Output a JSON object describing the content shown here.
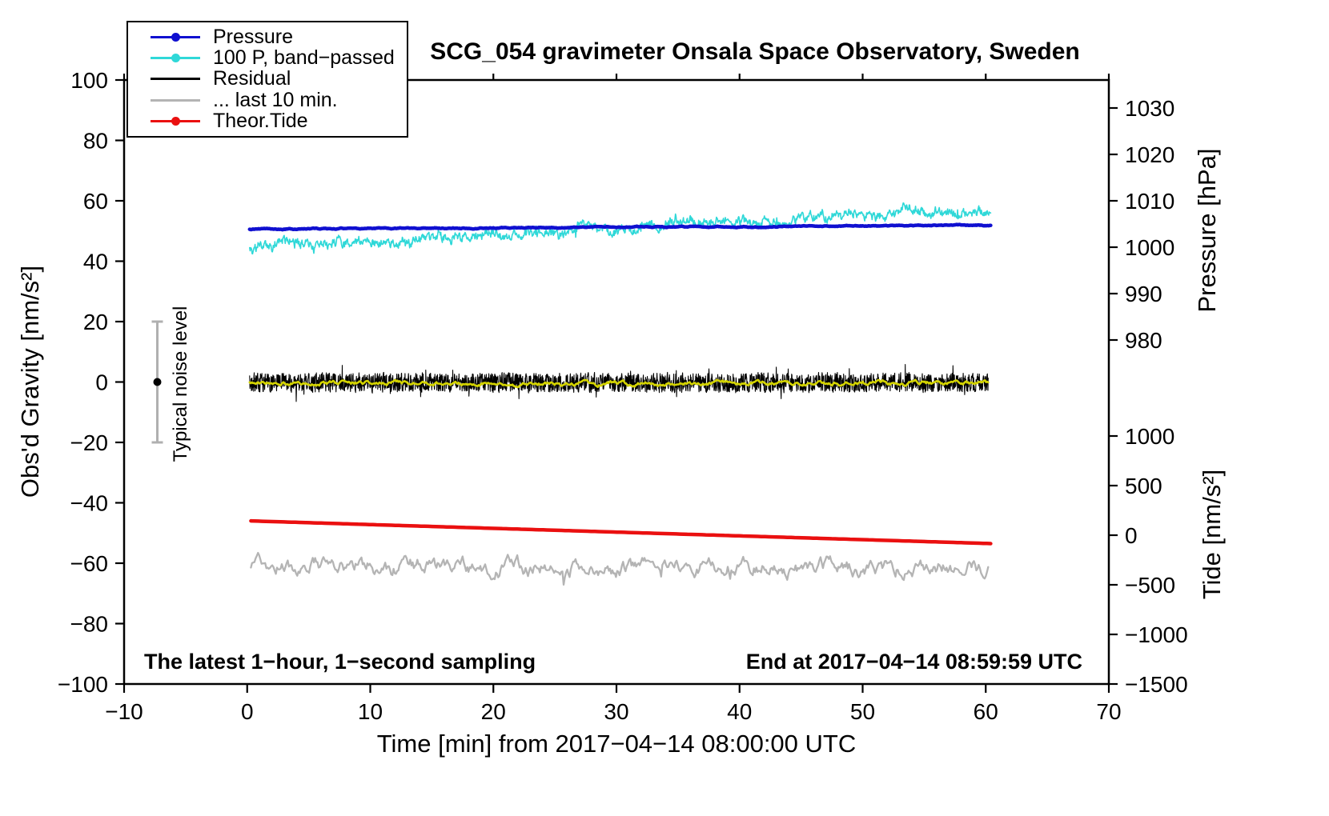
{
  "chart_data": {
    "type": "line",
    "title": "SCG_054 gravimeter Onsala Space Observatory, Sweden",
    "x": {
      "label": "Time [min] from 2017−04−14 08:00:00 UTC",
      "min": -10,
      "max": 70,
      "ticks": [
        -10,
        0,
        10,
        20,
        30,
        40,
        50,
        60,
        70
      ],
      "tick_labels": [
        "−10",
        "0",
        "10",
        "20",
        "30",
        "40",
        "50",
        "60",
        "70"
      ]
    },
    "y_left": {
      "label": "Obs'd Gravity [nm/s²]",
      "min": -100,
      "max": 100,
      "ticks": [
        100,
        80,
        60,
        40,
        20,
        0,
        -20,
        -40,
        -60,
        -80,
        -100
      ],
      "tick_labels": [
        "100",
        "80",
        "60",
        "40",
        "20",
        "0",
        "−20",
        "−40",
        "−60",
        "−80",
        "−100"
      ]
    },
    "y_pressure": {
      "label": "Pressure [hPa]",
      "ticks": [
        1030,
        1020,
        1010,
        1000,
        990,
        980
      ],
      "tick_labels": [
        "1030",
        "1020",
        "1010",
        "1000",
        "990",
        "980"
      ]
    },
    "y_tide": {
      "label": "Tide [nm/s²]",
      "ticks": [
        1000,
        500,
        0,
        -500,
        -1000,
        -1500
      ],
      "tick_labels": [
        "1000",
        "500",
        "0",
        "−500",
        "−1000",
        "−1500"
      ]
    },
    "legend": [
      {
        "label": "Pressure",
        "color": "#1010d0",
        "dot": true
      },
      {
        "label": "100 P, band−passed",
        "color": "#2fd8d8",
        "dot": true
      },
      {
        "label": "Residual",
        "color": "#000000",
        "dot": false
      },
      {
        "label": "... last 10 min.",
        "color": "#b4b4b4",
        "dot": false
      },
      {
        "label": "Theor.Tide",
        "color": "#ea1010",
        "dot": true
      }
    ],
    "annotations": {
      "noise_label": "Typical noise level",
      "sampling_note": "The latest 1−hour, 1−second sampling",
      "end_note": "End at 2017−04−14 08:59:59 UTC"
    },
    "noise_bar": {
      "x": -7.3,
      "y_low": -20,
      "y_high": 20,
      "dot_y": 0,
      "color": "#b0b0b0"
    },
    "series": [
      {
        "id": "bandpassed",
        "name": "100 P, band−passed",
        "color": "#2fd8d8",
        "width": 1.6,
        "x_range": [
          0.2,
          60.4
        ],
        "trend": [
          44.5,
          57.3
        ],
        "smooth": 0.5,
        "noise_sd": 0.75,
        "smooth2": 0.93,
        "noise2_sd": 0.8,
        "spike": 2.2,
        "spike_p": 0.004,
        "points": 1500,
        "seed": 7,
        "desc": "Band-passed pressure (x100): rises from about 44.5 to 57.5 nm/s2 over the hour with about +/-2 noise"
      },
      {
        "id": "pressure",
        "name": "Pressure",
        "color": "#1010d0",
        "width": 4.5,
        "x_range": [
          0.2,
          60.4
        ],
        "trend": [
          50.6,
          51.9
        ],
        "smooth": 0.9,
        "noise_sd": 0.12,
        "points": 900,
        "seed": 11,
        "desc": "Pressure about 1004 hPa, nearly flat with very slight rise"
      },
      {
        "id": "residual",
        "name": "Residual",
        "color": "#000000",
        "width": 1.1,
        "x_range": [
          0.2,
          60.2
        ],
        "trend": [
          -0.2,
          -0.2
        ],
        "smooth": 0.12,
        "noise_sd": 1.8,
        "spike": 2.8,
        "spike_p": 0.012,
        "points": 2600,
        "seed": 3,
        "desc": "1-second residual, noise band centered on 0, excursions to about +/-6 nm/s2"
      },
      {
        "id": "residual-smooth",
        "name": "Residual smoothed",
        "color": "#d4d400",
        "width": 2.6,
        "x_range": [
          0.2,
          60.2
        ],
        "trend": [
          -0.4,
          -0.4
        ],
        "smooth": 0.85,
        "noise_sd": 0.5,
        "points": 700,
        "seed": 5,
        "desc": "Yellow smoothed residual overlay hugging 0"
      },
      {
        "id": "last10min",
        "name": "... last 10 min.",
        "color": "#b4b4b4",
        "width": 2.3,
        "x_range": [
          0.3,
          60.2
        ],
        "trend": [
          -60.9,
          -61.6
        ],
        "smooth": 0.8,
        "noise_sd": 1.7,
        "spike": 2.5,
        "spike_p": 0.01,
        "points": 620,
        "seed": 9,
        "desc": "Gray trace plotted around -61 nm/s2 with smooth wiggles to about +/-5"
      },
      {
        "id": "theortide",
        "name": "Theor.Tide",
        "color": "#ea1010",
        "width": 4.5,
        "x_range": [
          0.3,
          60.4
        ],
        "trend": [
          -46.0,
          -53.5
        ],
        "smooth": 0,
        "noise_sd": 0,
        "points": 200,
        "seed": 1,
        "desc": "Theoretical tide: straight decline, about +145 to -75 nm/s2 on the tide axis"
      }
    ]
  }
}
